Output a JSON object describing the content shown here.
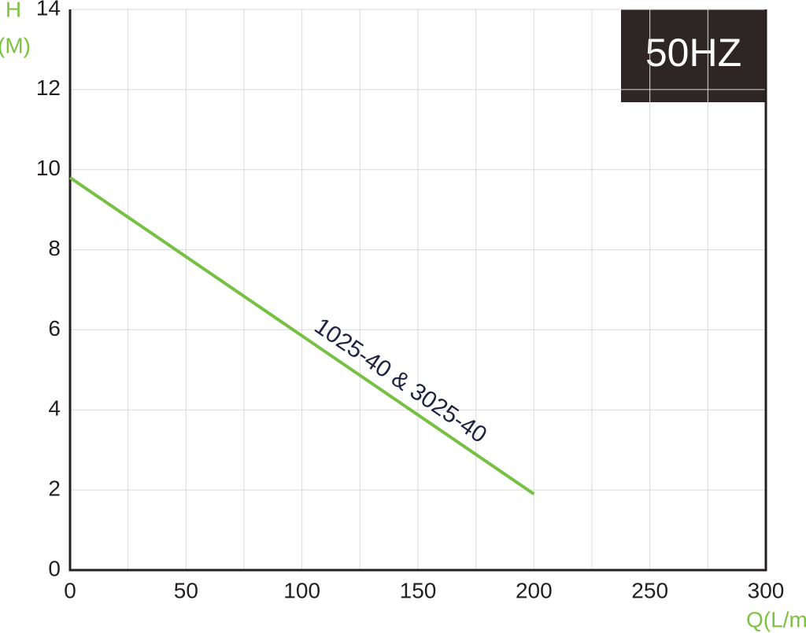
{
  "chart_data": {
    "type": "line",
    "title": "50HZ",
    "y_label_top": "H",
    "y_label_unit": "(M)",
    "x_label": "Q(L/m)",
    "annotation": "1025-40 & 3025-40",
    "x": [
      0,
      200
    ],
    "series": [
      {
        "name": "1025-40 & 3025-40",
        "color": "#76c043",
        "values": [
          9.8,
          1.9
        ]
      }
    ],
    "xlim": [
      0,
      300
    ],
    "xticks": [
      0,
      50,
      100,
      150,
      200,
      250,
      300
    ],
    "xminorticks": [
      25,
      75,
      125,
      175,
      225,
      275
    ],
    "ylim": [
      0,
      14
    ],
    "yticks": [
      0,
      2,
      4,
      6,
      8,
      10,
      12,
      14
    ],
    "grid": true
  }
}
